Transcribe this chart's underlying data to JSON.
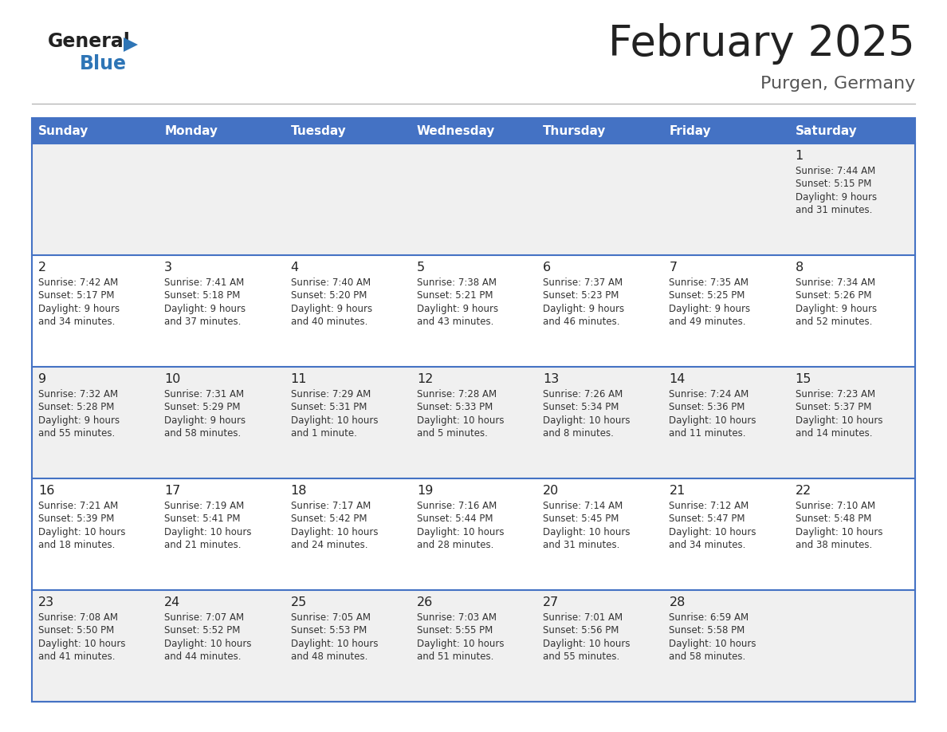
{
  "title": "February 2025",
  "subtitle": "Purgen, Germany",
  "header_bg": "#4472C4",
  "header_text_color": "#FFFFFF",
  "day_names": [
    "Sunday",
    "Monday",
    "Tuesday",
    "Wednesday",
    "Thursday",
    "Friday",
    "Saturday"
  ],
  "row_bg_odd": "#F0F0F0",
  "row_bg_even": "#FFFFFF",
  "cell_border_color": "#4472C4",
  "number_color": "#222222",
  "info_color": "#333333",
  "logo_general_color": "#222222",
  "logo_blue_color": "#2E75B6",
  "title_color": "#222222",
  "subtitle_color": "#555555",
  "separator_color": "#AAAAAA",
  "calendar": [
    [
      null,
      null,
      null,
      null,
      null,
      null,
      {
        "day": 1,
        "sunrise": "7:44 AM",
        "sunset": "5:15 PM",
        "daylight": "9 hours",
        "daylight2": "and 31 minutes."
      }
    ],
    [
      {
        "day": 2,
        "sunrise": "7:42 AM",
        "sunset": "5:17 PM",
        "daylight": "9 hours",
        "daylight2": "and 34 minutes."
      },
      {
        "day": 3,
        "sunrise": "7:41 AM",
        "sunset": "5:18 PM",
        "daylight": "9 hours",
        "daylight2": "and 37 minutes."
      },
      {
        "day": 4,
        "sunrise": "7:40 AM",
        "sunset": "5:20 PM",
        "daylight": "9 hours",
        "daylight2": "and 40 minutes."
      },
      {
        "day": 5,
        "sunrise": "7:38 AM",
        "sunset": "5:21 PM",
        "daylight": "9 hours",
        "daylight2": "and 43 minutes."
      },
      {
        "day": 6,
        "sunrise": "7:37 AM",
        "sunset": "5:23 PM",
        "daylight": "9 hours",
        "daylight2": "and 46 minutes."
      },
      {
        "day": 7,
        "sunrise": "7:35 AM",
        "sunset": "5:25 PM",
        "daylight": "9 hours",
        "daylight2": "and 49 minutes."
      },
      {
        "day": 8,
        "sunrise": "7:34 AM",
        "sunset": "5:26 PM",
        "daylight": "9 hours",
        "daylight2": "and 52 minutes."
      }
    ],
    [
      {
        "day": 9,
        "sunrise": "7:32 AM",
        "sunset": "5:28 PM",
        "daylight": "9 hours",
        "daylight2": "and 55 minutes."
      },
      {
        "day": 10,
        "sunrise": "7:31 AM",
        "sunset": "5:29 PM",
        "daylight": "9 hours",
        "daylight2": "and 58 minutes."
      },
      {
        "day": 11,
        "sunrise": "7:29 AM",
        "sunset": "5:31 PM",
        "daylight": "10 hours",
        "daylight2": "and 1 minute."
      },
      {
        "day": 12,
        "sunrise": "7:28 AM",
        "sunset": "5:33 PM",
        "daylight": "10 hours",
        "daylight2": "and 5 minutes."
      },
      {
        "day": 13,
        "sunrise": "7:26 AM",
        "sunset": "5:34 PM",
        "daylight": "10 hours",
        "daylight2": "and 8 minutes."
      },
      {
        "day": 14,
        "sunrise": "7:24 AM",
        "sunset": "5:36 PM",
        "daylight": "10 hours",
        "daylight2": "and 11 minutes."
      },
      {
        "day": 15,
        "sunrise": "7:23 AM",
        "sunset": "5:37 PM",
        "daylight": "10 hours",
        "daylight2": "and 14 minutes."
      }
    ],
    [
      {
        "day": 16,
        "sunrise": "7:21 AM",
        "sunset": "5:39 PM",
        "daylight": "10 hours",
        "daylight2": "and 18 minutes."
      },
      {
        "day": 17,
        "sunrise": "7:19 AM",
        "sunset": "5:41 PM",
        "daylight": "10 hours",
        "daylight2": "and 21 minutes."
      },
      {
        "day": 18,
        "sunrise": "7:17 AM",
        "sunset": "5:42 PM",
        "daylight": "10 hours",
        "daylight2": "and 24 minutes."
      },
      {
        "day": 19,
        "sunrise": "7:16 AM",
        "sunset": "5:44 PM",
        "daylight": "10 hours",
        "daylight2": "and 28 minutes."
      },
      {
        "day": 20,
        "sunrise": "7:14 AM",
        "sunset": "5:45 PM",
        "daylight": "10 hours",
        "daylight2": "and 31 minutes."
      },
      {
        "day": 21,
        "sunrise": "7:12 AM",
        "sunset": "5:47 PM",
        "daylight": "10 hours",
        "daylight2": "and 34 minutes."
      },
      {
        "day": 22,
        "sunrise": "7:10 AM",
        "sunset": "5:48 PM",
        "daylight": "10 hours",
        "daylight2": "and 38 minutes."
      }
    ],
    [
      {
        "day": 23,
        "sunrise": "7:08 AM",
        "sunset": "5:50 PM",
        "daylight": "10 hours",
        "daylight2": "and 41 minutes."
      },
      {
        "day": 24,
        "sunrise": "7:07 AM",
        "sunset": "5:52 PM",
        "daylight": "10 hours",
        "daylight2": "and 44 minutes."
      },
      {
        "day": 25,
        "sunrise": "7:05 AM",
        "sunset": "5:53 PM",
        "daylight": "10 hours",
        "daylight2": "and 48 minutes."
      },
      {
        "day": 26,
        "sunrise": "7:03 AM",
        "sunset": "5:55 PM",
        "daylight": "10 hours",
        "daylight2": "and 51 minutes."
      },
      {
        "day": 27,
        "sunrise": "7:01 AM",
        "sunset": "5:56 PM",
        "daylight": "10 hours",
        "daylight2": "and 55 minutes."
      },
      {
        "day": 28,
        "sunrise": "6:59 AM",
        "sunset": "5:58 PM",
        "daylight": "10 hours",
        "daylight2": "and 58 minutes."
      },
      null
    ]
  ]
}
